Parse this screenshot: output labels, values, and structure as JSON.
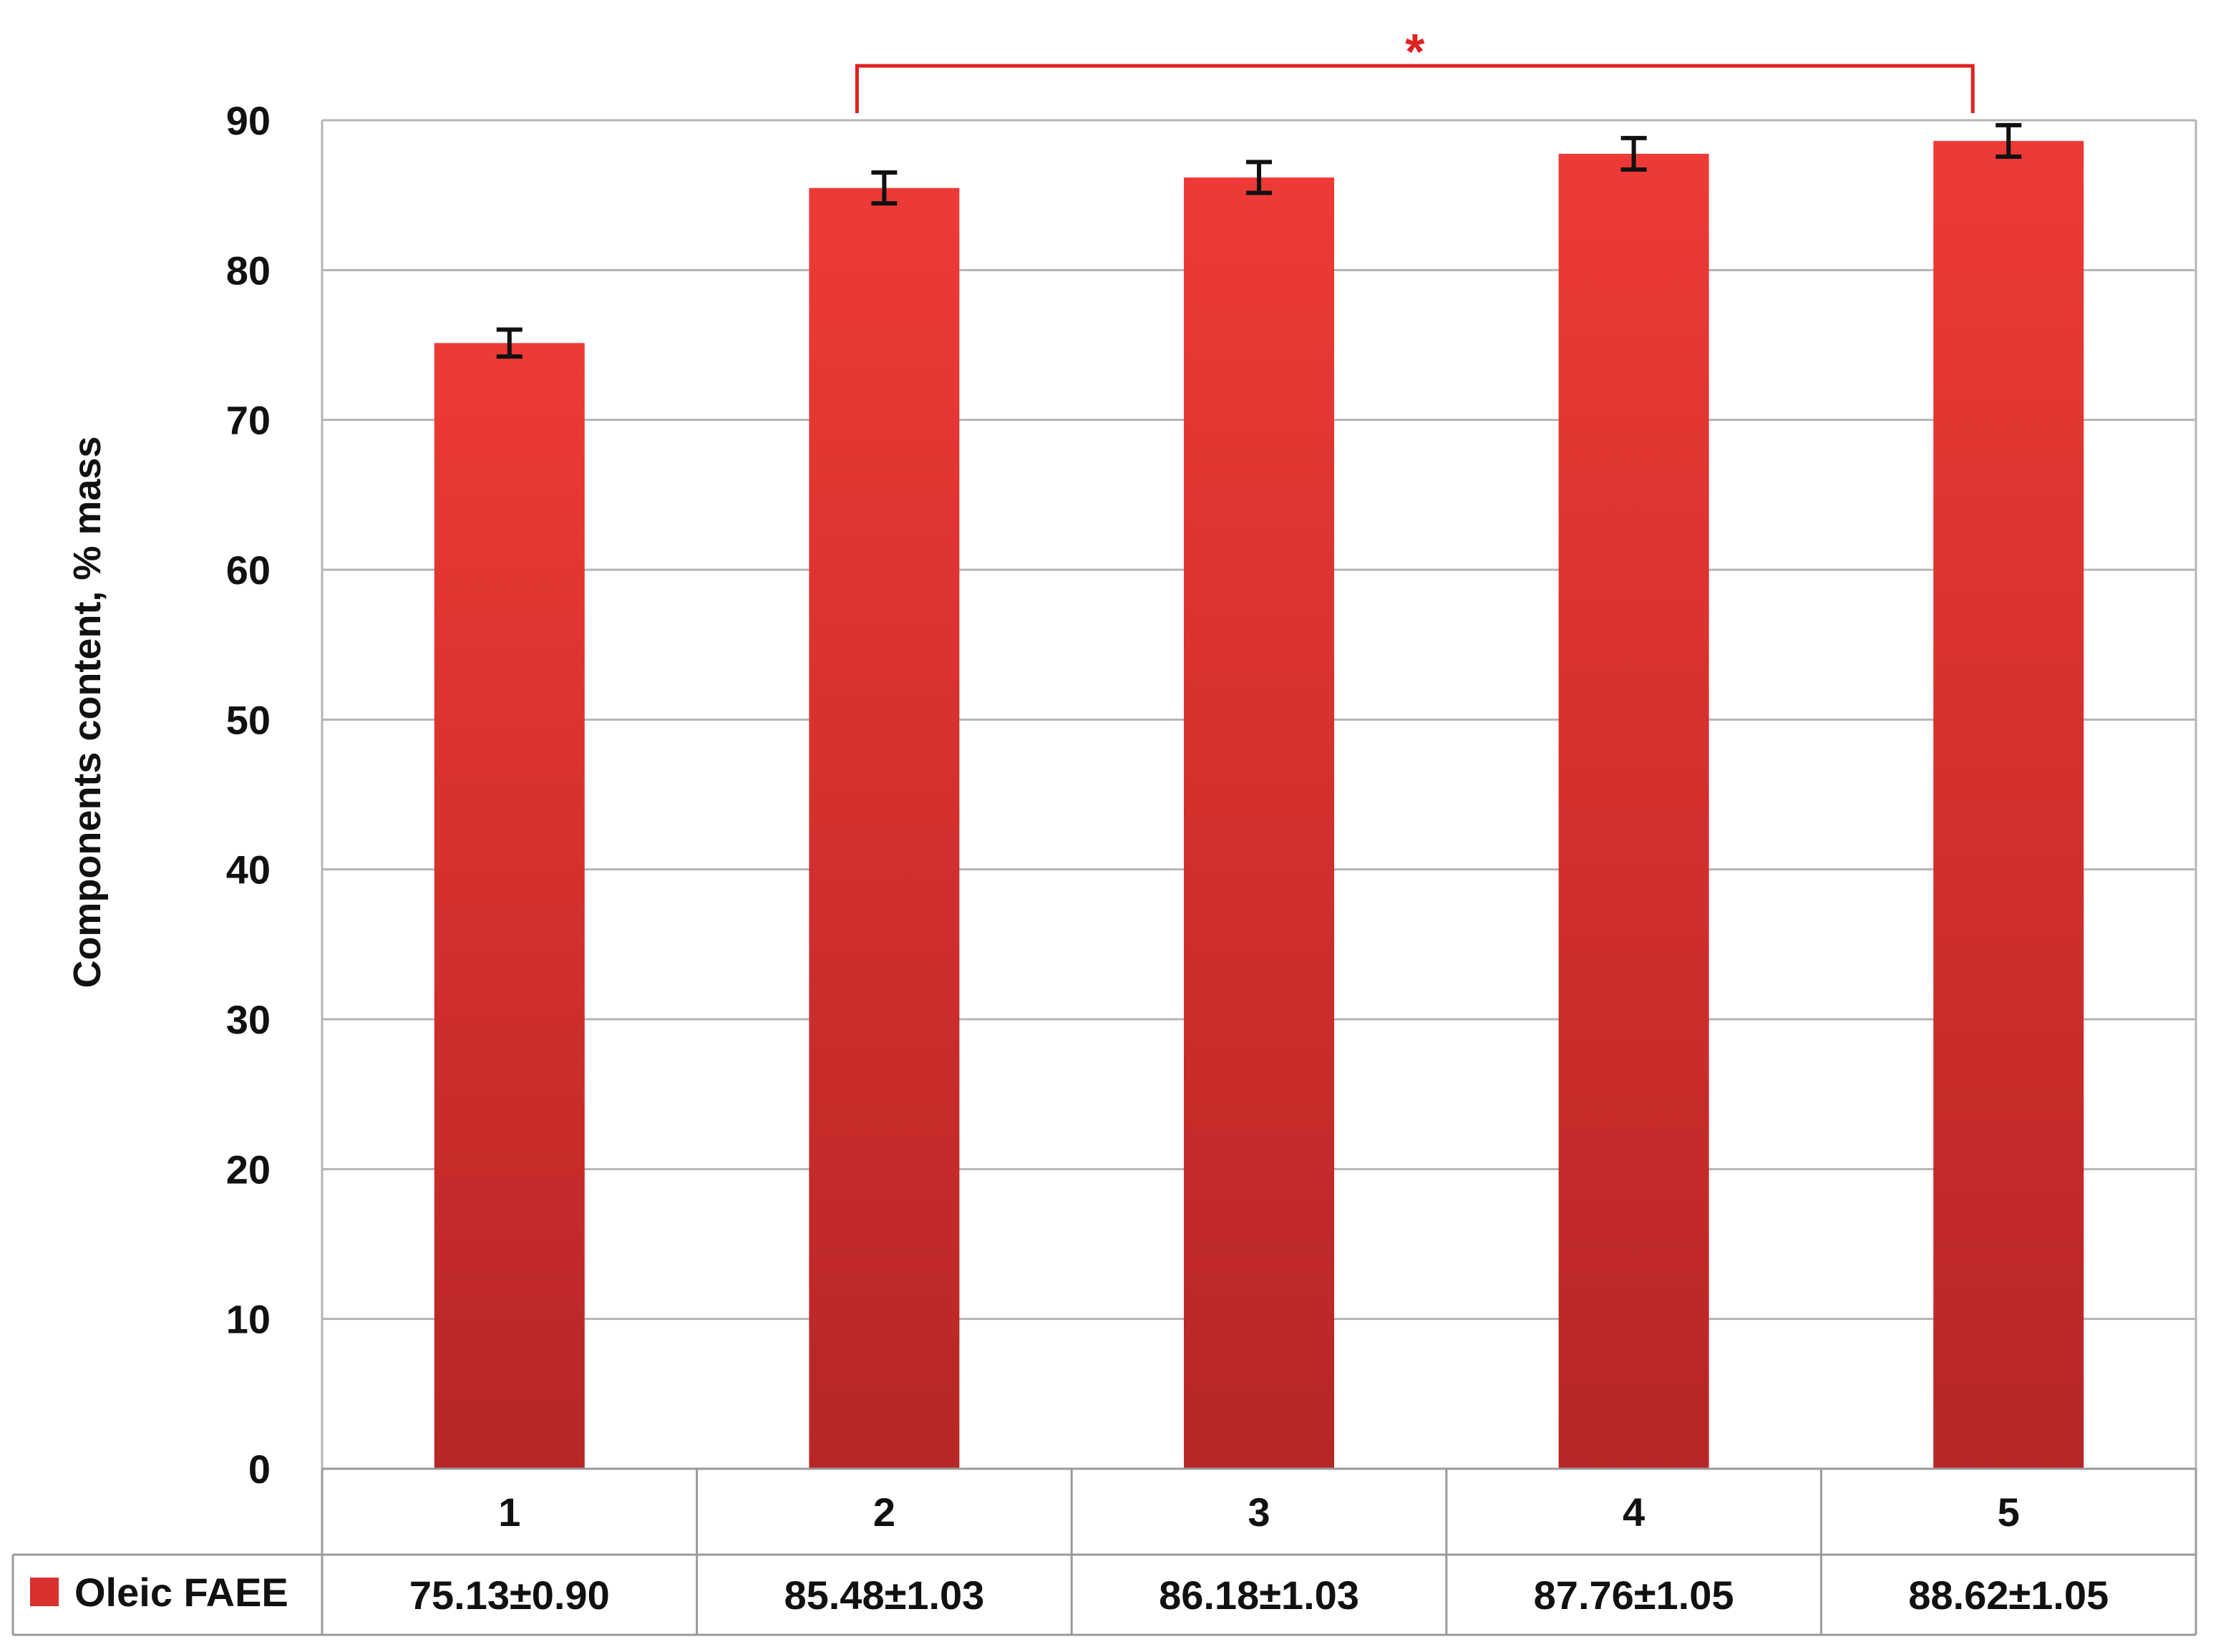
{
  "chart_data": {
    "type": "bar",
    "title": "",
    "ylabel": "Components content, % mass",
    "xlabel": "",
    "categories": [
      "1",
      "2",
      "3",
      "4",
      "5"
    ],
    "series": [
      {
        "name": "Oleic FAEE",
        "values": [
          75.13,
          85.48,
          86.18,
          87.76,
          88.62
        ],
        "errors": [
          0.9,
          1.03,
          1.03,
          1.05,
          1.05
        ],
        "table_labels": [
          "75.13±0.90",
          "85.48±1.03",
          "86.18±1.03",
          "87.76±1.05",
          "88.62±1.05"
        ],
        "color": "#d82f2f"
      }
    ],
    "ylim": [
      0,
      90
    ],
    "yticks": [
      0,
      10,
      20,
      30,
      40,
      50,
      60,
      70,
      80,
      90
    ],
    "grid": true,
    "legend": "data-table-left",
    "significance": {
      "from_category": "2",
      "to_category": "5",
      "label": "*",
      "color": "#e02020"
    }
  }
}
